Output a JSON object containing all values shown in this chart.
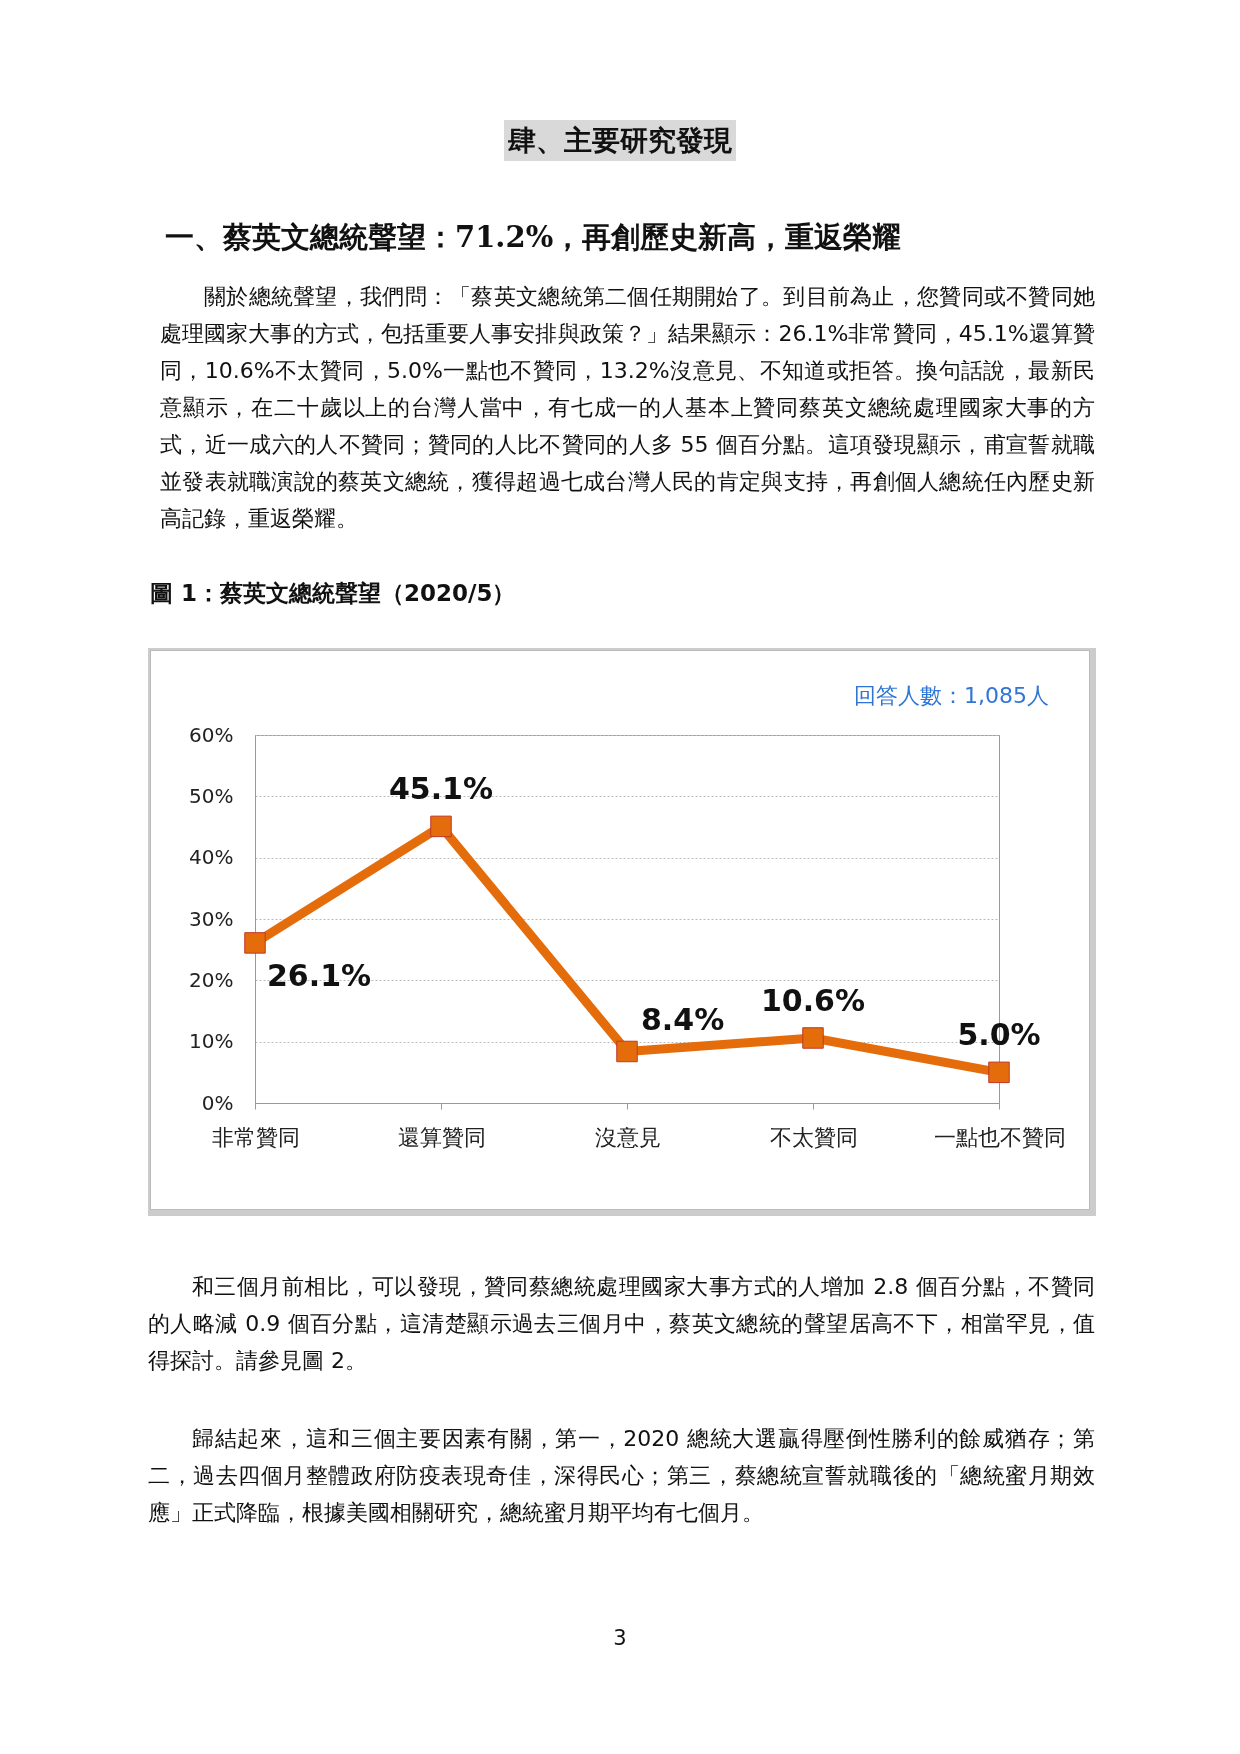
{
  "chart_data": {
    "type": "line",
    "title": "圖 1：蔡英文總統聲望（2020/5）",
    "annotations": [
      "肆、主要研究發現",
      "一、蔡英文總統聲望：71.2%，再創歷史新高，重返榮耀",
      "關於總統聲望，我們問：「蔡英文總統第二個任期開始了。到目前為止，您贊同或不贊同她處理國家大事的方式，包括重要人事安排與政策？」結果顯示：26.1%非常贊同，45.1%還算贊同，10.6%不太贊同，5.0%一點也不贊同，13.2%沒意見、不知道或拒答。換句話說，最新民意顯示，在二十歲以上的台灣人當中，有七成一的人基本上贊同蔡英文總統處理國家大事的方式，近一成六的人不贊同；贊同的人比不贊同的人多 55 個百分點。這項發現顯示，甫宣誓就職並發表就職演說的蔡英文總統，獲得超過七成台灣人民的肯定與支持，再創個人總統任內歷史新高記錄，重返榮耀。",
      "回答人數：1,085人",
      "和三個月前相比，可以發現，贊同蔡總統處理國家大事方式的人增加 2.8 個百分點，不贊同的人略減 0.9 個百分點，這清楚顯示過去三個月中，蔡英文總統的聲望居高不下，相當罕見，值得探討。請參見圖 2。",
      "歸結起來，這和三個主要因素有關，第一，2020 總統大選贏得壓倒性勝利的餘威猶存；第二，過去四個月整體政府防疫表現奇佳，深得民心；第三，蔡總統宣誓就職後的「總統蜜月期效應」正式降臨，根據美國相關研究，總統蜜月期平均有七個月。",
      "3"
    ],
    "categories": [
      "非常贊同",
      "還算贊同",
      "沒意見",
      "不太贊同",
      "一點也不贊同"
    ],
    "series": [
      {
        "color": "#e46c0a",
        "values": [
          26.1,
          45.1,
          8.4,
          10.6,
          5.0
        ],
        "value_labels": [
          "26.1%",
          "45.1%",
          "8.4%",
          "10.6%",
          "5.0%"
        ]
      }
    ],
    "ylim": [
      0,
      60
    ],
    "yticks": [
      {
        "value": 0,
        "label": "0%"
      },
      {
        "value": 10,
        "label": "10%"
      },
      {
        "value": 20,
        "label": "20%"
      },
      {
        "value": 30,
        "label": "30%"
      },
      {
        "value": 40,
        "label": "40%"
      },
      {
        "value": 50,
        "label": "50%"
      },
      {
        "value": 60,
        "label": "60%"
      }
    ],
    "grid": "y",
    "marker": "square",
    "line_style": "solid"
  }
}
